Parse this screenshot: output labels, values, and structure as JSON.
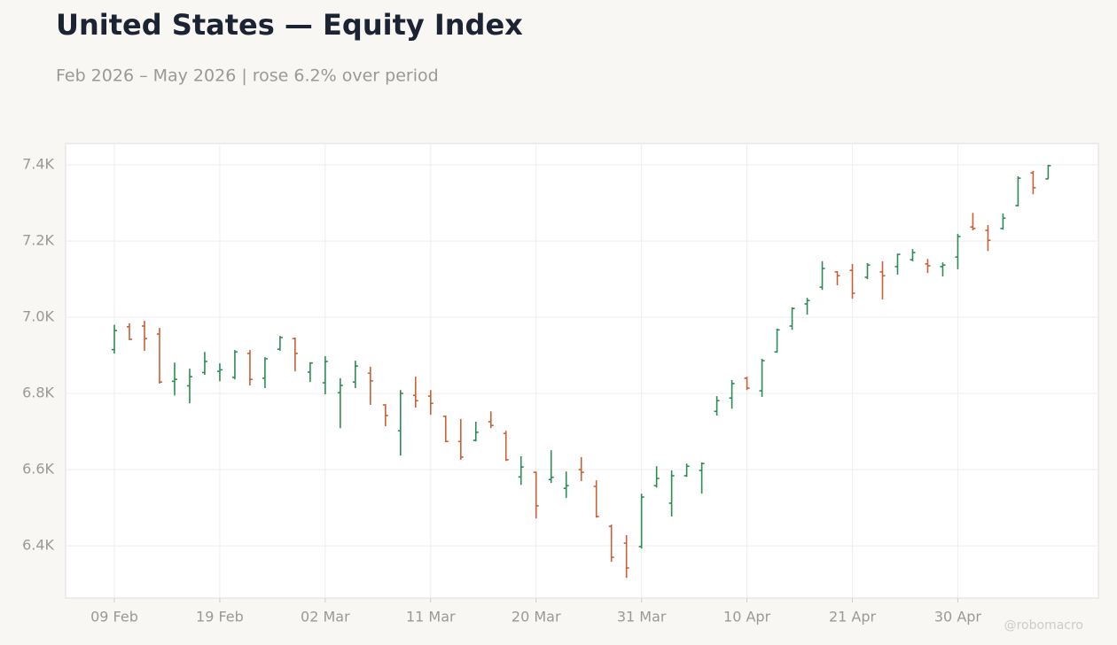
{
  "chart_data": {
    "type": "ohlc",
    "title": "United States — Equity Index",
    "subtitle": "Feb 2026 – May 2026 | rose 6.2% over period",
    "watermark": "@robomacro",
    "categories": [
      "09 Feb",
      null,
      null,
      null,
      null,
      null,
      null,
      "19 Feb",
      null,
      null,
      null,
      null,
      null,
      null,
      "02 Mar",
      null,
      null,
      null,
      null,
      null,
      null,
      "11 Mar",
      null,
      null,
      null,
      null,
      null,
      null,
      "20 Mar",
      null,
      null,
      null,
      null,
      null,
      null,
      "31 Mar",
      null,
      null,
      null,
      null,
      null,
      null,
      "10 Apr",
      null,
      null,
      null,
      null,
      null,
      null,
      "21 Apr",
      null,
      null,
      null,
      null,
      null,
      null,
      "30 Apr",
      null,
      null,
      null,
      null,
      null,
      null
    ],
    "open": [
      6915,
      6975,
      6977,
      6956,
      6832,
      6820,
      6855,
      6858,
      6842,
      6905,
      6840,
      6916,
      6944,
      6856,
      6828,
      6802,
      6830,
      6853,
      6770,
      6702,
      6795,
      6793,
      6740,
      6674,
      6677,
      6726,
      6695,
      6581,
      6593,
      6574,
      6551,
      6600,
      6556,
      6451,
      6407,
      6398,
      6558,
      6512,
      6584,
      6598,
      6753,
      6788,
      6840,
      6807,
      6909,
      6977,
      7035,
      7079,
      7119,
      7123,
      7105,
      7119,
      7133,
      7151,
      7140,
      7133,
      7158,
      7237,
      7228,
      7233,
      7293,
      7379,
      7363
    ],
    "high": [
      6980,
      6984,
      6991,
      6972,
      6881,
      6865,
      6909,
      6879,
      6914,
      6914,
      6895,
      6951,
      6947,
      6882,
      6898,
      6840,
      6886,
      6870,
      6772,
      6809,
      6844,
      6809,
      6742,
      6733,
      6726,
      6753,
      6702,
      6635,
      6595,
      6651,
      6595,
      6633,
      6572,
      6456,
      6428,
      6537,
      6609,
      6598,
      6616,
      6619,
      6793,
      6835,
      6844,
      6891,
      6970,
      7026,
      7051,
      7147,
      7121,
      7140,
      7142,
      7147,
      7167,
      7179,
      7153,
      7144,
      7219,
      7274,
      7242,
      7272,
      7370,
      7384,
      7400
    ],
    "low": [
      6905,
      6940,
      6912,
      6826,
      6795,
      6774,
      6849,
      6832,
      6837,
      6821,
      6814,
      6912,
      6858,
      6830,
      6798,
      6709,
      6814,
      6770,
      6714,
      6637,
      6763,
      6744,
      6672,
      6626,
      6674,
      6709,
      6623,
      6560,
      6472,
      6565,
      6526,
      6570,
      6474,
      6358,
      6316,
      6393,
      6553,
      6477,
      6581,
      6537,
      6742,
      6760,
      6809,
      6791,
      6907,
      6967,
      7007,
      7072,
      7084,
      7049,
      7100,
      7047,
      7112,
      7147,
      7116,
      7107,
      7126,
      7228,
      7174,
      7230,
      7291,
      7323,
      7363
    ],
    "close": [
      6965,
      6942,
      6944,
      6830,
      6837,
      6844,
      6884,
      6862,
      6909,
      6837,
      6891,
      6947,
      6905,
      6880,
      6884,
      6821,
      6872,
      6833,
      6742,
      6800,
      6781,
      6774,
      6674,
      6633,
      6698,
      6716,
      6626,
      6607,
      6505,
      6580,
      6558,
      6593,
      6477,
      6370,
      6342,
      6528,
      6577,
      6584,
      6609,
      6616,
      6781,
      6826,
      6814,
      6886,
      6967,
      7023,
      7044,
      7128,
      7109,
      7063,
      7137,
      7109,
      7165,
      7170,
      7135,
      7137,
      7212,
      7233,
      7202,
      7260,
      7365,
      7340,
      7398
    ],
    "up_color": "#2e8b57",
    "down_color": "#c8603a",
    "ylim": [
      6263,
      7456
    ],
    "yticks": [
      {
        "value": 6400,
        "label": "6.4K"
      },
      {
        "value": 6600,
        "label": "6.6K"
      },
      {
        "value": 6800,
        "label": "6.8K"
      },
      {
        "value": 7000,
        "label": "7.0K"
      },
      {
        "value": 7200,
        "label": "7.2K"
      },
      {
        "value": 7400,
        "label": "7.4K"
      }
    ],
    "grid": true
  }
}
